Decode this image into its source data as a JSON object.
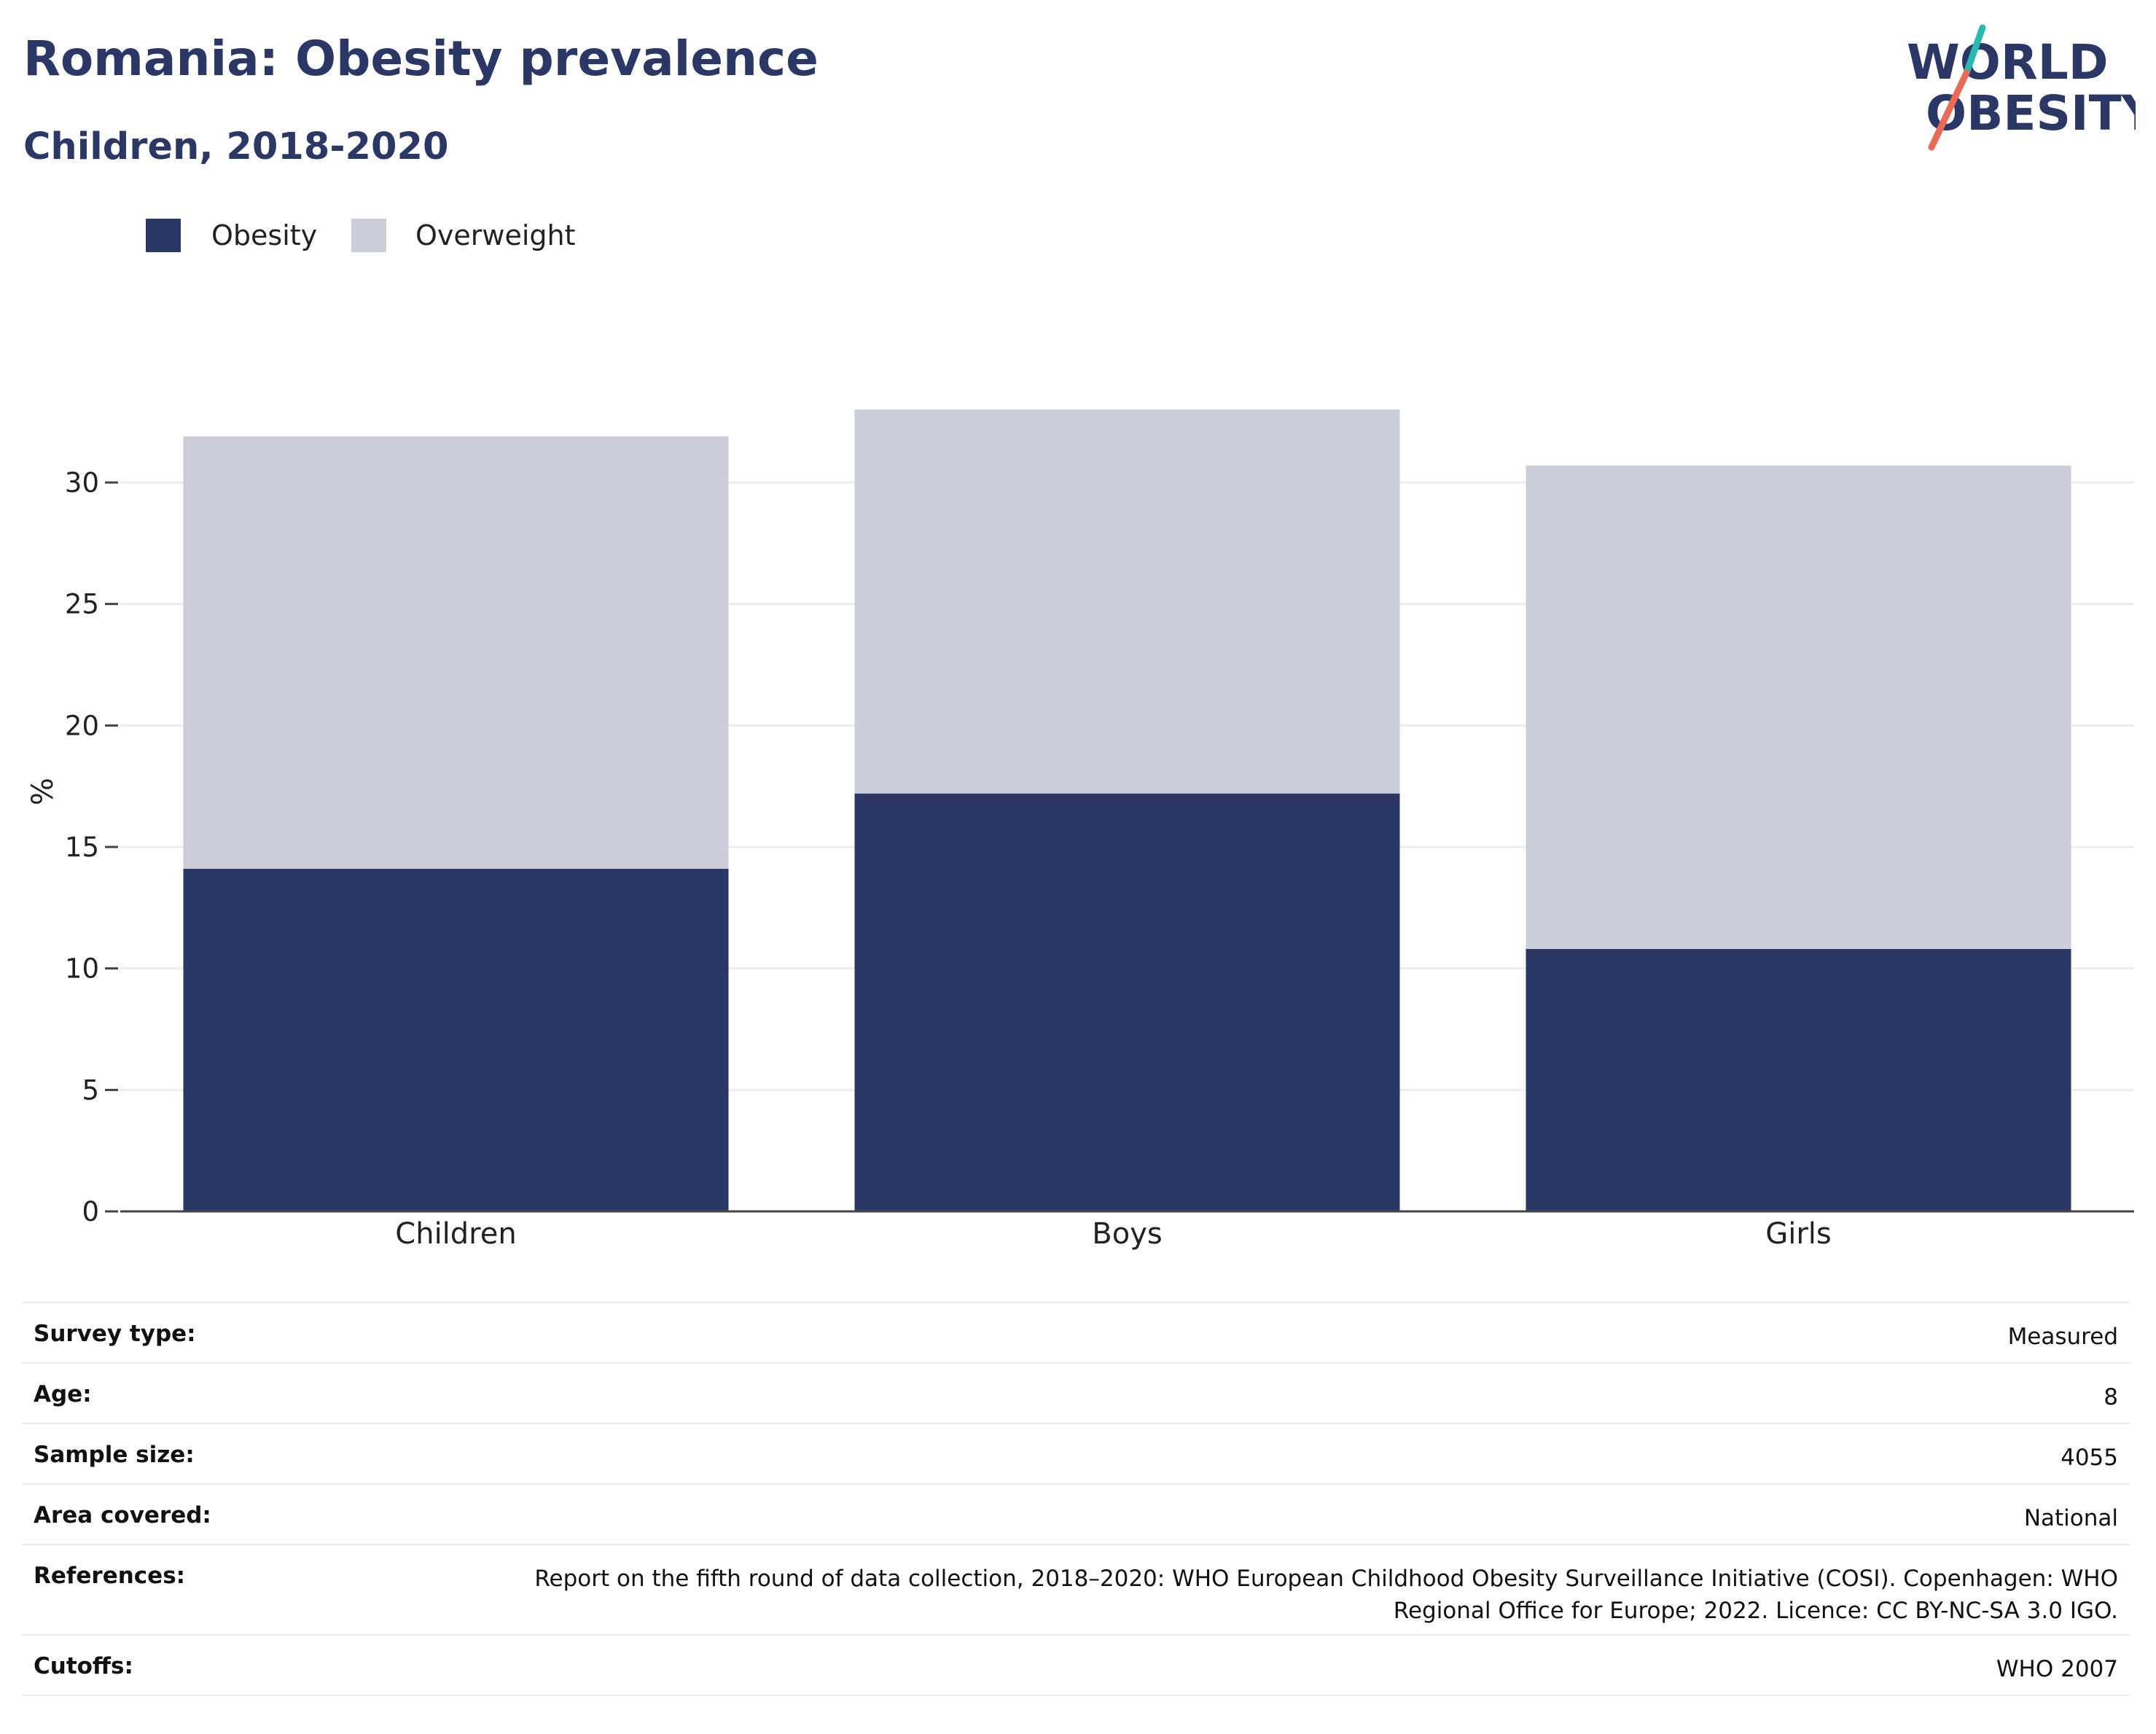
{
  "header": {
    "title": "Romania: Obesity prevalence",
    "subtitle": "Children, 2018-2020"
  },
  "logo": {
    "line1": "WORLD",
    "line2": "OBESITY",
    "colors": {
      "text": "#2b3764",
      "slash_top": "#2bb7b3",
      "slash_bottom": "#e96b56"
    }
  },
  "legend": [
    {
      "label": "Obesity",
      "color": "#2b3764"
    },
    {
      "label": "Overweight",
      "color": "#cbcdd8"
    }
  ],
  "chart_data": {
    "type": "bar",
    "stacked": true,
    "categories": [
      "Children",
      "Boys",
      "Girls"
    ],
    "series": [
      {
        "name": "Obesity",
        "values": [
          14.1,
          17.2,
          10.8
        ],
        "color": "#2b3764"
      },
      {
        "name": "Overweight",
        "values": [
          17.8,
          15.8,
          19.9
        ],
        "color": "#cbcdd8"
      }
    ],
    "ylabel": "%",
    "ylim": [
      0,
      33
    ],
    "yticks": [
      0,
      5,
      10,
      15,
      20,
      25,
      30
    ],
    "grid": true,
    "legend_position": "top-left"
  },
  "info": [
    {
      "label": "Survey type:",
      "value": "Measured"
    },
    {
      "label": "Age:",
      "value": "8"
    },
    {
      "label": "Sample size:",
      "value": "4055"
    },
    {
      "label": "Area covered:",
      "value": "National"
    },
    {
      "label": "References:",
      "value": "Report on the fifth round of data collection, 2018–2020: WHO European Childhood Obesity Surveillance Initiative (COSI). Copenhagen: WHO Regional Office for Europe; 2022. Licence: CC BY-NC-SA 3.0 IGO."
    },
    {
      "label": "Cutoffs:",
      "value": "WHO 2007"
    }
  ]
}
